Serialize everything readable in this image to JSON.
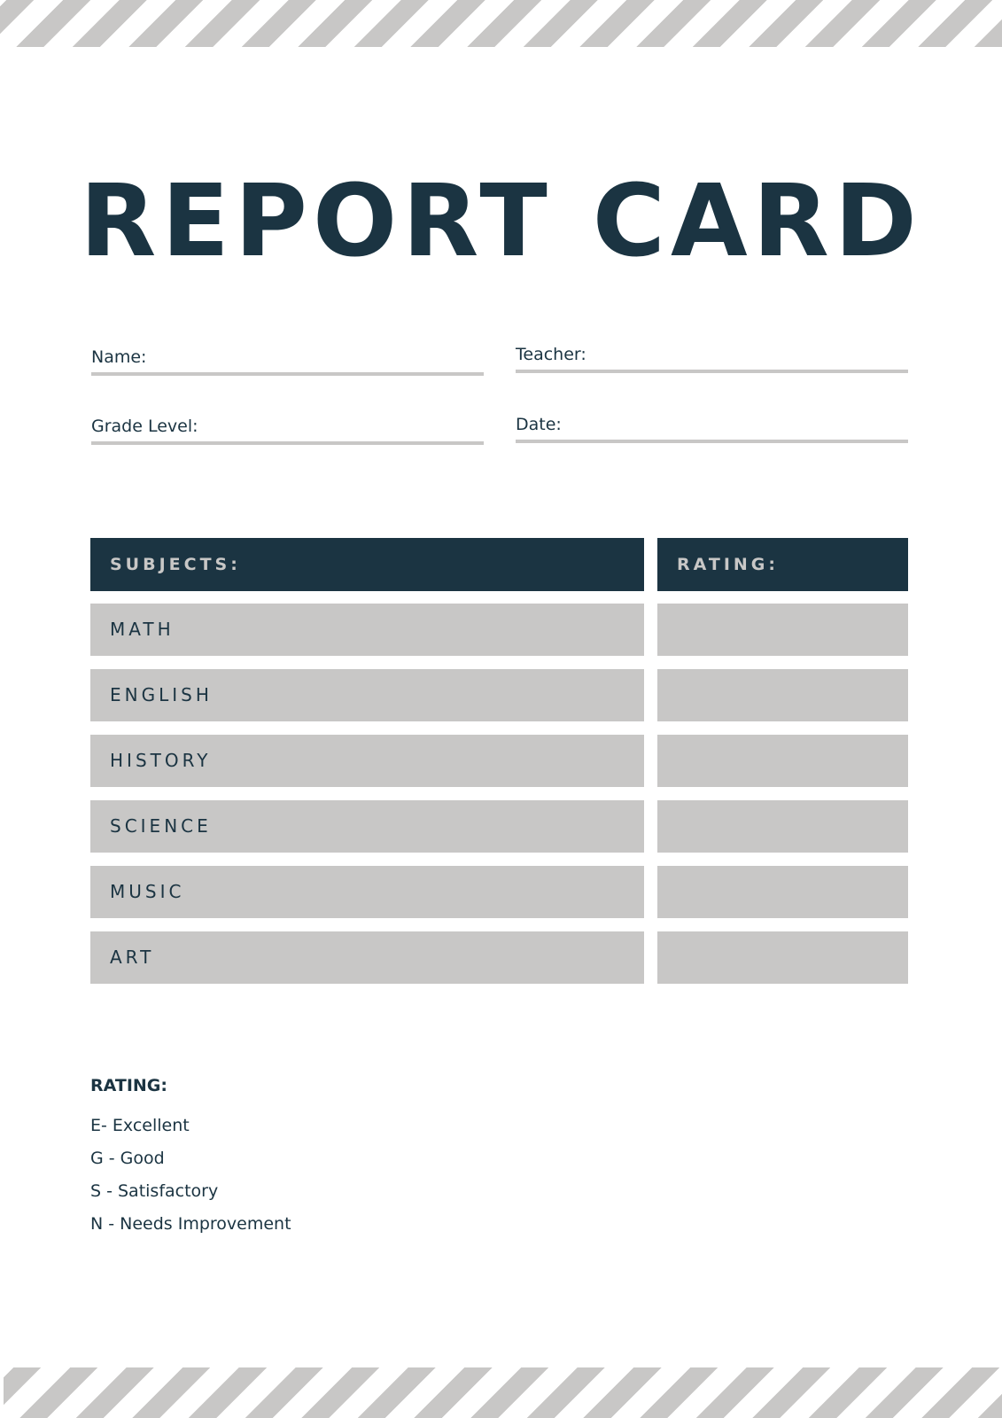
{
  "title": "REPORT CARD",
  "fields": {
    "name": "Name:",
    "teacher": "Teacher:",
    "grade_level": "Grade Level:",
    "date": "Date:"
  },
  "table": {
    "headers": {
      "subjects": "SUBJECTS:",
      "rating": "RATING:"
    },
    "subjects": [
      "MATH",
      "ENGLISH",
      "HISTORY",
      "SCIENCE",
      "MUSIC",
      "ART"
    ]
  },
  "legend": {
    "title": "RATING:",
    "items": [
      "E- Excellent",
      "G - Good",
      "S - Satisfactory",
      "N - Needs Improvement"
    ]
  },
  "colors": {
    "primary": "#1b3442",
    "gray": "#c8c7c6"
  }
}
